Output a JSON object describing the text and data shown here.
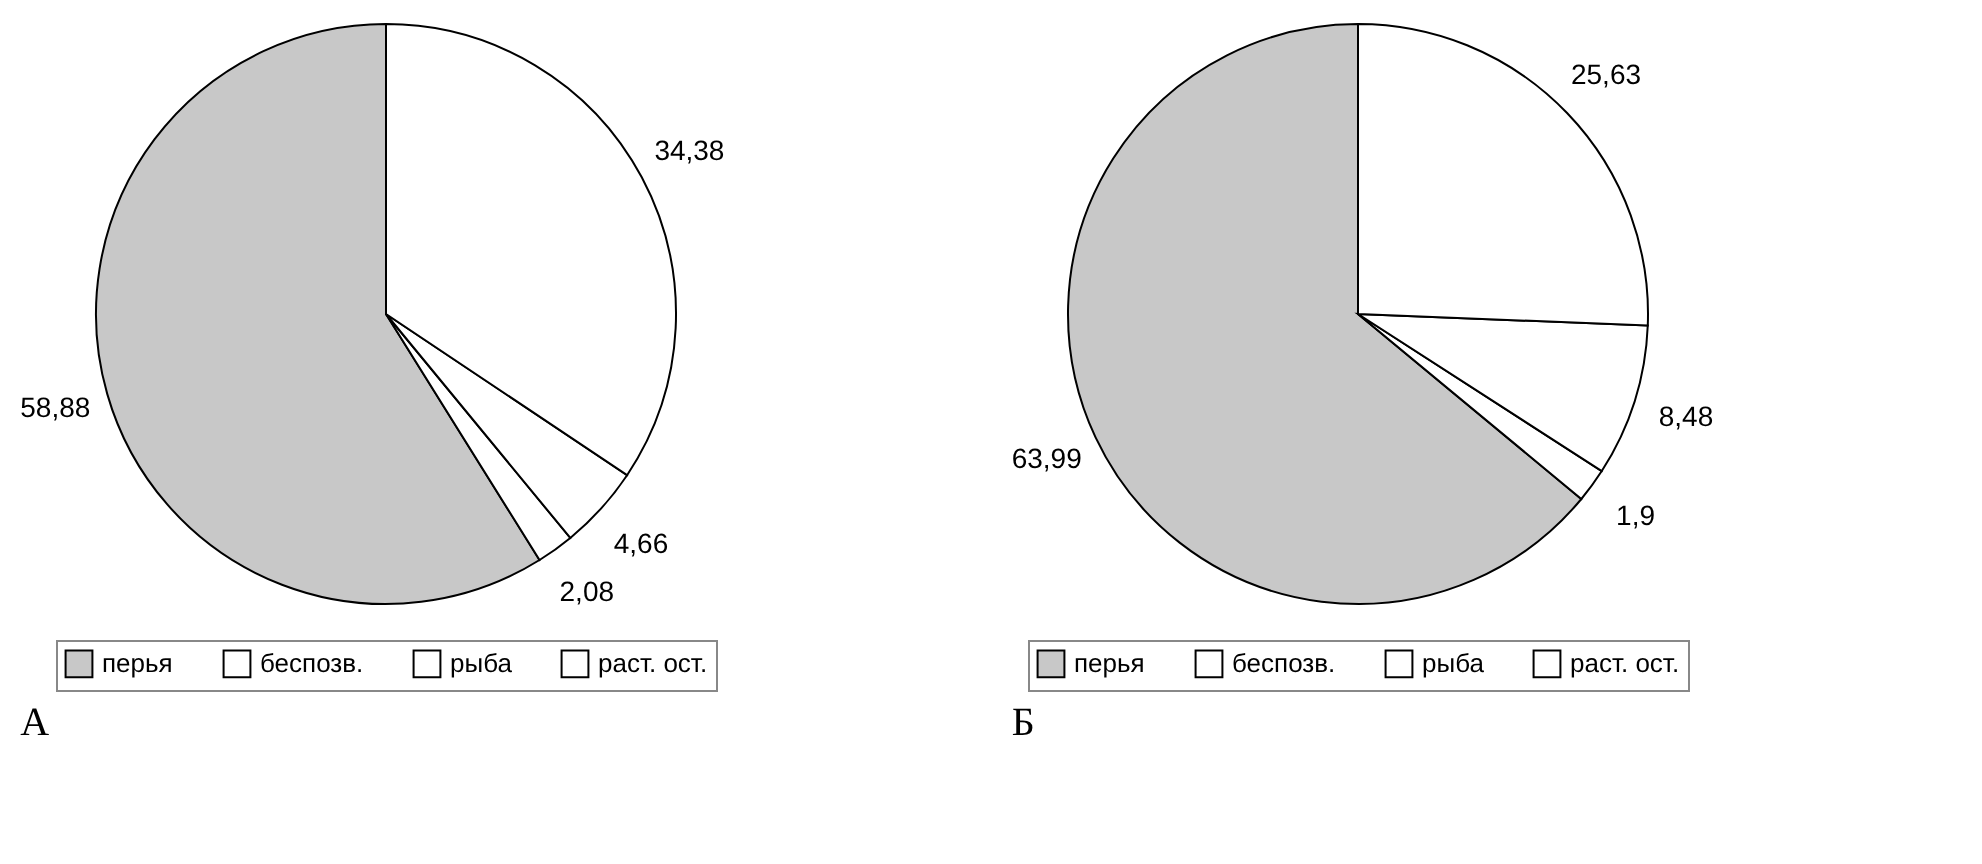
{
  "chart_data": [
    {
      "type": "pie",
      "title": "А",
      "categories": [
        "перья",
        "беспозв.",
        "рыба",
        "раст. ост."
      ],
      "values": [
        58.88,
        2.08,
        4.66,
        34.38
      ],
      "colors": [
        "#c8c8c8",
        "#ffffff",
        "#ffffff",
        "#ffffff"
      ],
      "value_labels": [
        "58,88",
        "2,08",
        "4,66",
        "34,38"
      ],
      "legend": "bottom"
    },
    {
      "type": "pie",
      "title": "Б",
      "categories": [
        "перья",
        "беспозв.",
        "рыба",
        "раст. ост."
      ],
      "values": [
        63.99,
        1.9,
        8.48,
        25.63
      ],
      "colors": [
        "#c8c8c8",
        "#ffffff",
        "#ffffff",
        "#ffffff"
      ],
      "value_labels": [
        "63,99",
        "1,9",
        "8,48",
        "25,63"
      ],
      "legend": "bottom"
    }
  ]
}
